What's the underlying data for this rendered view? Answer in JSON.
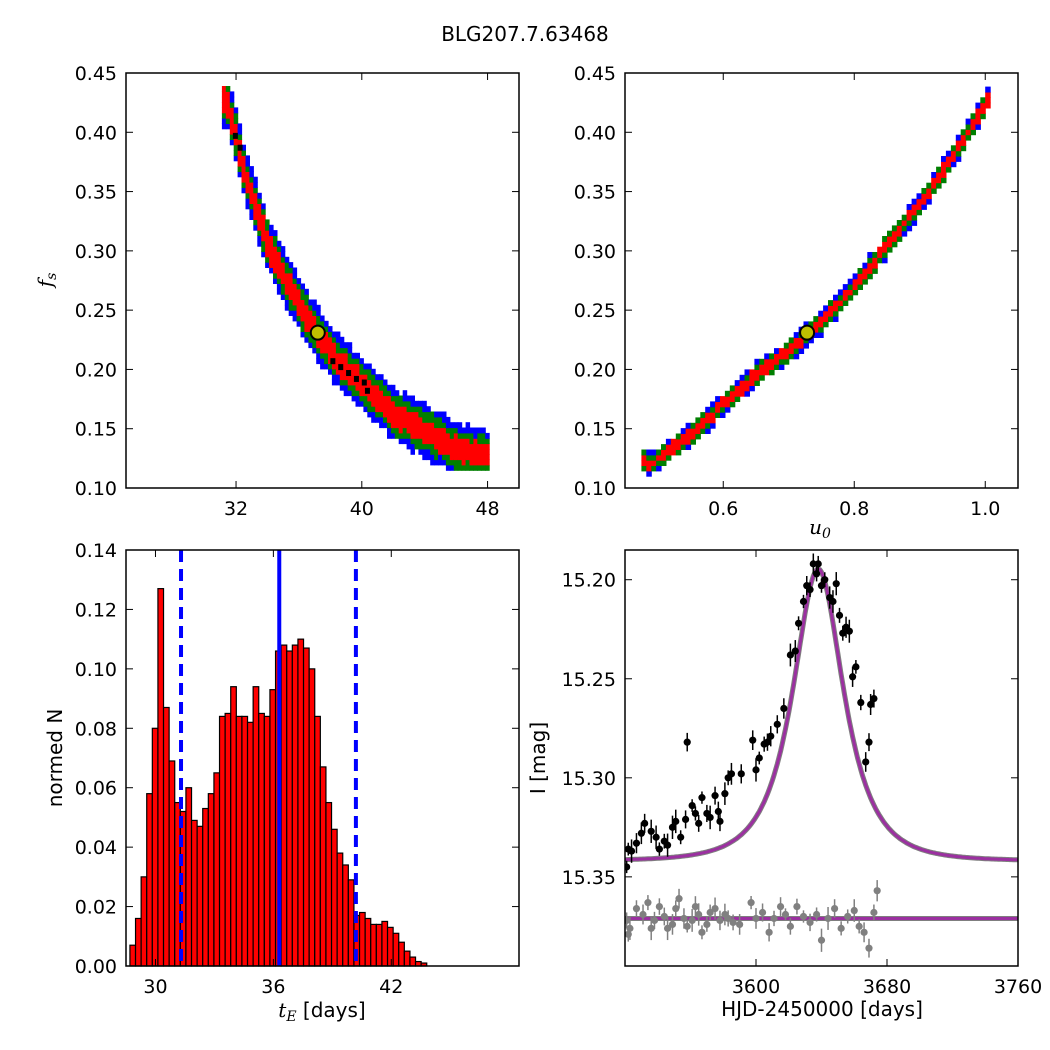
{
  "figure": {
    "title": "BLG207.7.63468"
  },
  "chart_data": [
    {
      "type": "heatmap",
      "panel": "top-left",
      "xlabel": "",
      "ylabel": "f_s",
      "xlim": [
        25,
        50
      ],
      "ylim": [
        0.1,
        0.45
      ],
      "xticks": [
        32,
        40,
        48
      ],
      "yticks": [
        "0.10",
        "0.15",
        "0.20",
        "0.25",
        "0.30",
        "0.35",
        "0.40",
        "0.45"
      ],
      "levels": [
        {
          "name": "1",
          "color": "#0000ff",
          "halfwidth": 0.022
        },
        {
          "name": "2",
          "color": "#007f00",
          "halfwidth": 0.016
        },
        {
          "name": "3",
          "color": "#ff0000",
          "halfwidth": 0.01
        }
      ],
      "ridge": [
        [
          31.3,
          0.425
        ],
        [
          32.5,
          0.36
        ],
        [
          34.0,
          0.3
        ],
        [
          36.0,
          0.25
        ],
        [
          38.0,
          0.21
        ],
        [
          40.0,
          0.185
        ],
        [
          42.0,
          0.16
        ],
        [
          44.0,
          0.145
        ],
        [
          46.0,
          0.13
        ],
        [
          47.5,
          0.125
        ]
      ],
      "black_cells": [
        [
          31.8,
          0.395
        ],
        [
          32.1,
          0.385
        ],
        [
          38.0,
          0.205
        ],
        [
          38.5,
          0.2
        ],
        [
          39.0,
          0.195
        ],
        [
          39.5,
          0.19
        ],
        [
          40.0,
          0.187
        ],
        [
          40.2,
          0.18
        ]
      ],
      "best_fit": {
        "x": 37.2,
        "y": 0.231,
        "color": "#bfbf00"
      }
    },
    {
      "type": "heatmap",
      "panel": "top-right",
      "xlabel": "u_0",
      "ylabel": "",
      "xlim": [
        0.45,
        1.05
      ],
      "ylim": [
        0.1,
        0.45
      ],
      "xticks": [
        "0.6",
        "0.8",
        "1.0"
      ],
      "yticks": [
        "0.10",
        "0.15",
        "0.20",
        "0.25",
        "0.30",
        "0.35",
        "0.40",
        "0.45"
      ],
      "ridge": [
        [
          0.49,
          0.12
        ],
        [
          0.55,
          0.145
        ],
        [
          0.6,
          0.17
        ],
        [
          0.65,
          0.195
        ],
        [
          0.7,
          0.215
        ],
        [
          0.75,
          0.24
        ],
        [
          0.8,
          0.27
        ],
        [
          0.85,
          0.305
        ],
        [
          0.9,
          0.34
        ],
        [
          0.95,
          0.38
        ],
        [
          1.0,
          0.425
        ]
      ],
      "best_fit": {
        "x": 0.728,
        "y": 0.231,
        "color": "#bfbf00"
      }
    },
    {
      "type": "bar",
      "panel": "bottom-left",
      "xlabel": "t_E",
      "xlabel_unit": "[days]",
      "ylabel": "normed N",
      "xlim": [
        28.5,
        48.5
      ],
      "ylim": [
        0,
        0.14
      ],
      "xticks": [
        30,
        36,
        42
      ],
      "yticks": [
        "0.00",
        "0.02",
        "0.04",
        "0.06",
        "0.08",
        "0.10",
        "0.12",
        "0.14"
      ],
      "bin_start": 28.7,
      "bin_width": 0.285,
      "values": [
        0.007,
        0.016,
        0.03,
        0.058,
        0.08,
        0.127,
        0.087,
        0.069,
        0.055,
        0.052,
        0.06,
        0.049,
        0.047,
        0.053,
        0.058,
        0.065,
        0.084,
        0.085,
        0.094,
        0.084,
        0.084,
        0.082,
        0.094,
        0.085,
        0.084,
        0.093,
        0.106,
        0.108,
        0.106,
        0.108,
        0.11,
        0.107,
        0.1,
        0.084,
        0.067,
        0.055,
        0.046,
        0.038,
        0.034,
        0.029,
        0.017,
        0.018,
        0.016,
        0.014,
        0.014,
        0.015,
        0.013,
        0.011,
        0.008,
        0.005,
        0.003,
        0.0015,
        0.001
      ],
      "bar_color": "#ff0000",
      "median": 36.3,
      "lower": 31.3,
      "upper": 40.2,
      "line_color": "#0000ff"
    },
    {
      "type": "line",
      "panel": "bottom-right",
      "xlabel": "HJD-2450000 [days]",
      "ylabel": "I [mag]",
      "xlim": [
        3520,
        3760
      ],
      "ylim": [
        15.395,
        15.185
      ],
      "xticks": [
        3600,
        3680,
        3760
      ],
      "yticks": [
        "15.20",
        "15.25",
        "15.30",
        "15.35"
      ],
      "model": {
        "t0": 3638,
        "tE": 24,
        "u0": 0.73,
        "fs": 0.231,
        "baseline": 15.342,
        "resid_level": 15.371,
        "color": "#9b30a0"
      },
      "points": [
        [
          3521,
          15.345
        ],
        [
          3522,
          15.336
        ],
        [
          3524,
          15.337
        ],
        [
          3527,
          15.333
        ],
        [
          3530,
          15.328
        ],
        [
          3532,
          15.323
        ],
        [
          3536,
          15.327
        ],
        [
          3539,
          15.33
        ],
        [
          3541,
          15.336
        ],
        [
          3544,
          15.332
        ],
        [
          3546,
          15.334
        ],
        [
          3549,
          15.325
        ],
        [
          3551,
          15.322
        ],
        [
          3554,
          15.33
        ],
        [
          3557,
          15.321
        ],
        [
          3558,
          15.282
        ],
        [
          3561,
          15.314
        ],
        [
          3563,
          15.318
        ],
        [
          3565,
          15.323
        ],
        [
          3567,
          15.31
        ],
        [
          3570,
          15.318
        ],
        [
          3572,
          15.32
        ],
        [
          3575,
          15.309
        ],
        [
          3577,
          15.317
        ],
        [
          3578,
          15.322
        ],
        [
          3581,
          15.308
        ],
        [
          3583,
          15.3
        ],
        [
          3585,
          15.298
        ],
        [
          3591,
          15.298
        ],
        [
          3598,
          15.281
        ],
        [
          3600,
          15.296
        ],
        [
          3602,
          15.29
        ],
        [
          3605,
          15.283
        ],
        [
          3607,
          15.282
        ],
        [
          3609,
          15.279
        ],
        [
          3613,
          15.273
        ],
        [
          3617,
          15.265
        ],
        [
          3621,
          15.238
        ],
        [
          3624,
          15.236
        ],
        [
          3626,
          15.222
        ],
        [
          3629,
          15.211
        ],
        [
          3631,
          15.203
        ],
        [
          3633,
          15.205
        ],
        [
          3635,
          15.192
        ],
        [
          3637,
          15.197
        ],
        [
          3638,
          15.192
        ],
        [
          3640,
          15.203
        ],
        [
          3642,
          15.2
        ],
        [
          3645,
          15.209
        ],
        [
          3647,
          15.211
        ],
        [
          3649,
          15.202
        ],
        [
          3651,
          15.218
        ],
        [
          3653,
          15.227
        ],
        [
          3655,
          15.224
        ],
        [
          3657,
          15.226
        ],
        [
          3659,
          15.249
        ],
        [
          3661,
          15.244
        ],
        [
          3664,
          15.262
        ],
        [
          3667,
          15.292
        ],
        [
          3669,
          15.282
        ],
        [
          3670,
          15.263
        ],
        [
          3672,
          15.26
        ]
      ],
      "resid_points": [
        [
          3521,
          15.372
        ],
        [
          3522,
          15.379
        ],
        [
          3523,
          15.376
        ],
        [
          3527,
          15.366
        ],
        [
          3531,
          15.369
        ],
        [
          3534,
          15.363
        ],
        [
          3536,
          15.376
        ],
        [
          3538,
          15.372
        ],
        [
          3541,
          15.365
        ],
        [
          3544,
          15.37
        ],
        [
          3546,
          15.376
        ],
        [
          3549,
          15.374
        ],
        [
          3551,
          15.366
        ],
        [
          3553,
          15.361
        ],
        [
          3556,
          15.371
        ],
        [
          3558,
          15.375
        ],
        [
          3561,
          15.372
        ],
        [
          3563,
          15.365
        ],
        [
          3565,
          15.369
        ],
        [
          3567,
          15.378
        ],
        [
          3570,
          15.374
        ],
        [
          3572,
          15.368
        ],
        [
          3575,
          15.366
        ],
        [
          3578,
          15.372
        ],
        [
          3581,
          15.369
        ],
        [
          3583,
          15.371
        ],
        [
          3586,
          15.373
        ],
        [
          3590,
          15.374
        ],
        [
          3597,
          15.363
        ],
        [
          3600,
          15.371
        ],
        [
          3604,
          15.368
        ],
        [
          3608,
          15.378
        ],
        [
          3611,
          15.371
        ],
        [
          3615,
          15.365
        ],
        [
          3618,
          15.369
        ],
        [
          3621,
          15.375
        ],
        [
          3625,
          15.365
        ],
        [
          3629,
          15.37
        ],
        [
          3633,
          15.373
        ],
        [
          3637,
          15.369
        ],
        [
          3640,
          15.382
        ],
        [
          3644,
          15.371
        ],
        [
          3648,
          15.366
        ],
        [
          3652,
          15.376
        ],
        [
          3656,
          15.37
        ],
        [
          3660,
          15.367
        ],
        [
          3663,
          15.375
        ],
        [
          3666,
          15.378
        ],
        [
          3669,
          15.386
        ],
        [
          3672,
          15.368
        ],
        [
          3674,
          15.357
        ]
      ],
      "point_color": "#000000",
      "resid_color": "#808080"
    }
  ]
}
